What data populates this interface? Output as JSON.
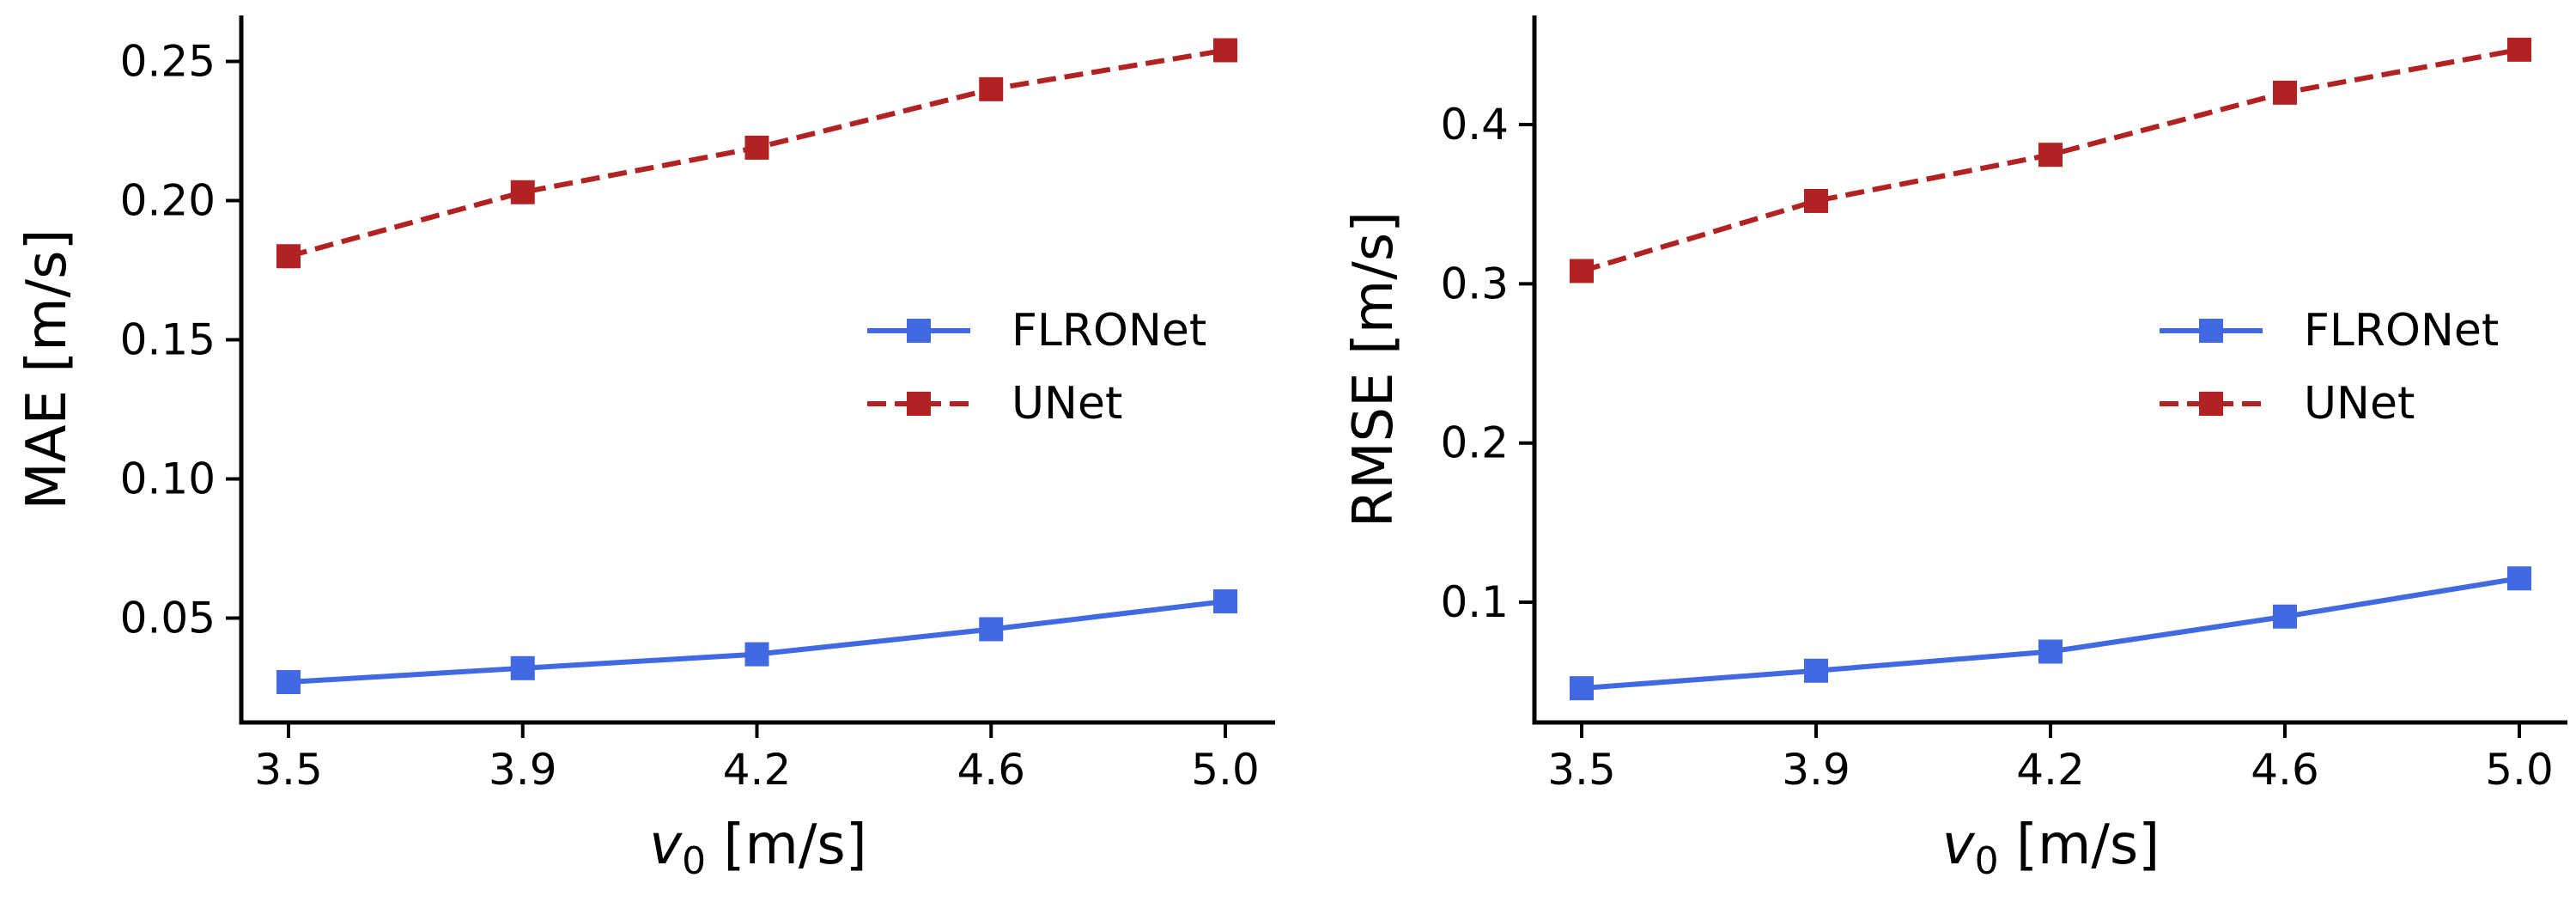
{
  "chart_data": [
    {
      "type": "line",
      "x": [
        "3.5",
        "3.9",
        "4.2",
        "4.6",
        "5.0"
      ],
      "xlabel_symbol": "v",
      "xlabel_subscript": "0",
      "xlabel_unit": " [m/s]",
      "ylabel": "MAE [m/s]",
      "ylim": [
        0.0125,
        0.2665
      ],
      "yticks": [
        0.05,
        0.1,
        0.15,
        0.2,
        0.25
      ],
      "ytick_labels": [
        "0.05",
        "0.10",
        "0.15",
        "0.20",
        "0.25"
      ],
      "legend_position": "center-right",
      "grid": false,
      "series": [
        {
          "name": "FLRONet",
          "color": "#4169e1",
          "dash": "solid",
          "values": [
            0.027,
            0.032,
            0.037,
            0.046,
            0.056
          ]
        },
        {
          "name": "UNet",
          "color": "#b22222",
          "dash": "dashed",
          "values": [
            0.18,
            0.203,
            0.219,
            0.24,
            0.254
          ]
        }
      ]
    },
    {
      "type": "line",
      "x": [
        "3.5",
        "3.9",
        "4.2",
        "4.6",
        "5.0"
      ],
      "xlabel_symbol": "v",
      "xlabel_subscript": "0",
      "xlabel_unit": " [m/s]",
      "ylabel": "RMSE [m/s]",
      "ylim": [
        0.0245,
        0.4685
      ],
      "yticks": [
        0.1,
        0.2,
        0.3,
        0.4
      ],
      "ytick_labels": [
        "0.1",
        "0.2",
        "0.3",
        "0.4"
      ],
      "legend_position": "center-right",
      "grid": false,
      "series": [
        {
          "name": "FLRONet",
          "color": "#4169e1",
          "dash": "solid",
          "values": [
            0.046,
            0.057,
            0.069,
            0.091,
            0.115
          ]
        },
        {
          "name": "UNet",
          "color": "#b22222",
          "dash": "dashed",
          "values": [
            0.308,
            0.352,
            0.381,
            0.42,
            0.447
          ]
        }
      ]
    }
  ]
}
